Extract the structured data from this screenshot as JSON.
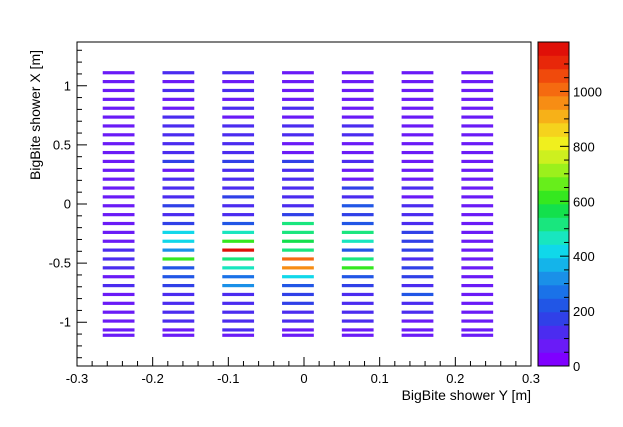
{
  "chart_data": {
    "type": "heatmap",
    "title": "",
    "xlabel": "BigBite shower Y [m]",
    "ylabel": "BigBite shower X [m]",
    "xlim": [
      -0.3,
      0.3
    ],
    "ylim": [
      -1.37,
      1.37
    ],
    "x_ticks": [
      "-0.3",
      "-0.2",
      "-0.1",
      "0",
      "0.1",
      "0.2",
      "0.3"
    ],
    "y_ticks": [
      "-1",
      "-0.5",
      "0",
      "0.5",
      "1"
    ],
    "z_range": [
      0,
      1180
    ],
    "z_ticks": [
      "0",
      "200",
      "400",
      "600",
      "800",
      "1000"
    ],
    "palette": [
      "#7f00ff",
      "#6a1bf7",
      "#4b2cf0",
      "#3040e8",
      "#2156e6",
      "#1a72e8",
      "#1a90e8",
      "#14b4ea",
      "#10d8ea",
      "#18e6bf",
      "#19e67e",
      "#13e04c",
      "#35e81f",
      "#67ee1b",
      "#9bf01c",
      "#cdf01f",
      "#f0ef1e",
      "#f5d31d",
      "#f7b118",
      "#f78d14",
      "#f56a10",
      "#f04a0c",
      "#e82709",
      "#e01008"
    ],
    "columns_y": [
      -0.245,
      -0.166,
      -0.087,
      -0.008,
      0.071,
      0.15,
      0.229
    ],
    "bar_width_y": 0.042,
    "rows_x": [
      1.11,
      1.035,
      0.96,
      0.885,
      0.81,
      0.735,
      0.66,
      0.585,
      0.51,
      0.435,
      0.36,
      0.285,
      0.21,
      0.135,
      0.06,
      -0.015,
      -0.09,
      -0.165,
      -0.24,
      -0.315,
      -0.39,
      -0.465,
      -0.54,
      -0.615,
      -0.69,
      -0.765,
      -0.84,
      -0.915,
      -0.99,
      -1.065,
      -1.11
    ],
    "values": [
      [
        60,
        100,
        120,
        90,
        80,
        60,
        70
      ],
      [
        70,
        90,
        80,
        80,
        70,
        60,
        60
      ],
      [
        60,
        120,
        130,
        90,
        70,
        70,
        70
      ],
      [
        80,
        80,
        90,
        70,
        90,
        80,
        60
      ],
      [
        80,
        90,
        120,
        100,
        60,
        80,
        70
      ],
      [
        80,
        100,
        80,
        80,
        70,
        60,
        70
      ],
      [
        80,
        110,
        100,
        120,
        100,
        80,
        70
      ],
      [
        80,
        110,
        110,
        100,
        100,
        70,
        70
      ],
      [
        70,
        120,
        100,
        90,
        90,
        80,
        70
      ],
      [
        70,
        140,
        120,
        90,
        70,
        70,
        70
      ],
      [
        70,
        180,
        180,
        150,
        130,
        80,
        70
      ],
      [
        80,
        90,
        100,
        110,
        80,
        90,
        60
      ],
      [
        80,
        140,
        100,
        140,
        80,
        80,
        70
      ],
      [
        70,
        120,
        130,
        120,
        160,
        100,
        60
      ],
      [
        90,
        140,
        150,
        120,
        140,
        80,
        80
      ],
      [
        80,
        150,
        120,
        130,
        200,
        100,
        70
      ],
      [
        90,
        130,
        120,
        180,
        150,
        100,
        70
      ],
      [
        80,
        180,
        220,
        530,
        230,
        110,
        70
      ],
      [
        90,
        400,
        480,
        500,
        510,
        150,
        80
      ],
      [
        90,
        440,
        620,
        560,
        460,
        160,
        80
      ],
      [
        110,
        300,
        1180,
        540,
        220,
        160,
        70
      ],
      [
        100,
        600,
        520,
        1030,
        500,
        140,
        70
      ],
      [
        110,
        200,
        450,
        960,
        590,
        150,
        80
      ],
      [
        90,
        220,
        290,
        430,
        210,
        170,
        80
      ],
      [
        100,
        170,
        330,
        220,
        180,
        130,
        80
      ],
      [
        90,
        100,
        140,
        180,
        130,
        220,
        70
      ],
      [
        90,
        110,
        130,
        160,
        120,
        120,
        70
      ],
      [
        80,
        130,
        100,
        140,
        130,
        100,
        70
      ],
      [
        80,
        100,
        100,
        120,
        120,
        80,
        70
      ],
      [
        70,
        90,
        100,
        90,
        80,
        80,
        60
      ],
      [
        70,
        80,
        90,
        80,
        90,
        70,
        60
      ]
    ]
  }
}
